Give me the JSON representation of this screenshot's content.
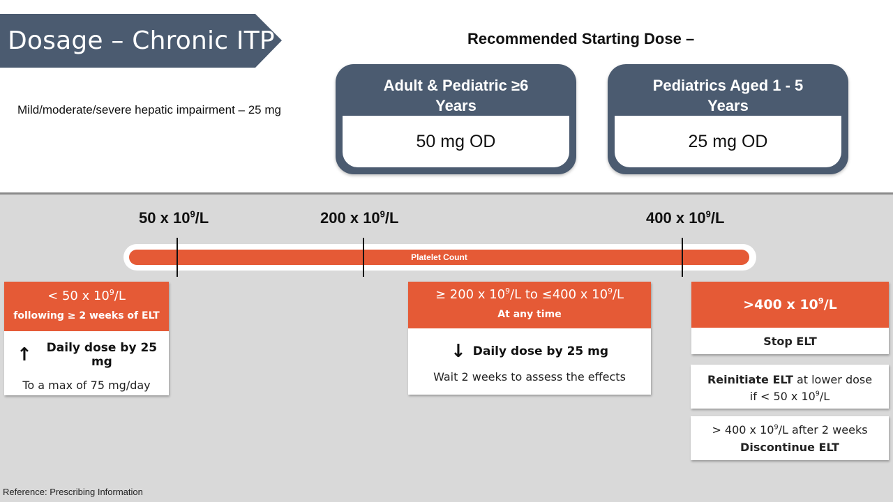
{
  "title": "Dosage – Chronic ITP",
  "hepatic_note": "Mild/moderate/severe hepatic impairment – 25 mg",
  "recommended_heading": "Recommended Starting Dose –",
  "cards": [
    {
      "heading_line1": "Adult & Pediatric ≥6",
      "heading_line2": "Years",
      "dose": "50 mg OD"
    },
    {
      "heading_line1": "Pediatrics Aged 1 - 5",
      "heading_line2": "Years",
      "dose": "25 mg OD"
    }
  ],
  "scale": {
    "bar_label": "Platelet Count",
    "unit_base": "x 10",
    "unit_exp": "9",
    "unit_suffix": "/L",
    "ticks": [
      "50",
      "200",
      "400"
    ]
  },
  "low_box": {
    "header_num": "< 50 x 10",
    "header_exp": "9",
    "header_suffix": "/L",
    "header_sub": "following ≥ 2 weeks of ELT",
    "action_arrow": "↑",
    "action": "Daily dose by 25 mg",
    "note": "To a max of 75 mg/day"
  },
  "mid_box": {
    "header_a": "≥ 200 x 10",
    "header_exp1": "9",
    "header_b": "/L to ≤400 x 10",
    "header_exp2": "9",
    "header_c": "/L",
    "header_sub": "At any time",
    "action_arrow": "↓",
    "action": "Daily dose by 25 mg",
    "note": "Wait 2 weeks to assess the effects"
  },
  "high_box": {
    "header_num": ">400 x 10",
    "header_exp": "9",
    "header_suffix": "/L",
    "action": "Stop ELT"
  },
  "reinit_box": {
    "bold": "Reinitiate ELT",
    "rest": " at lower dose",
    "line2_a": "if < 50 x 10",
    "line2_exp": "9",
    "line2_b": "/L"
  },
  "disc_box": {
    "line1_a": "> 400 x 10",
    "line1_exp": "9",
    "line1_b": "/L after 2 weeks",
    "line2": "Discontinue ELT"
  },
  "reference": "Reference: Prescribing Information",
  "colors": {
    "slate": "#4b5b70",
    "orange": "#e55a36",
    "panel": "#d9d9d9"
  }
}
